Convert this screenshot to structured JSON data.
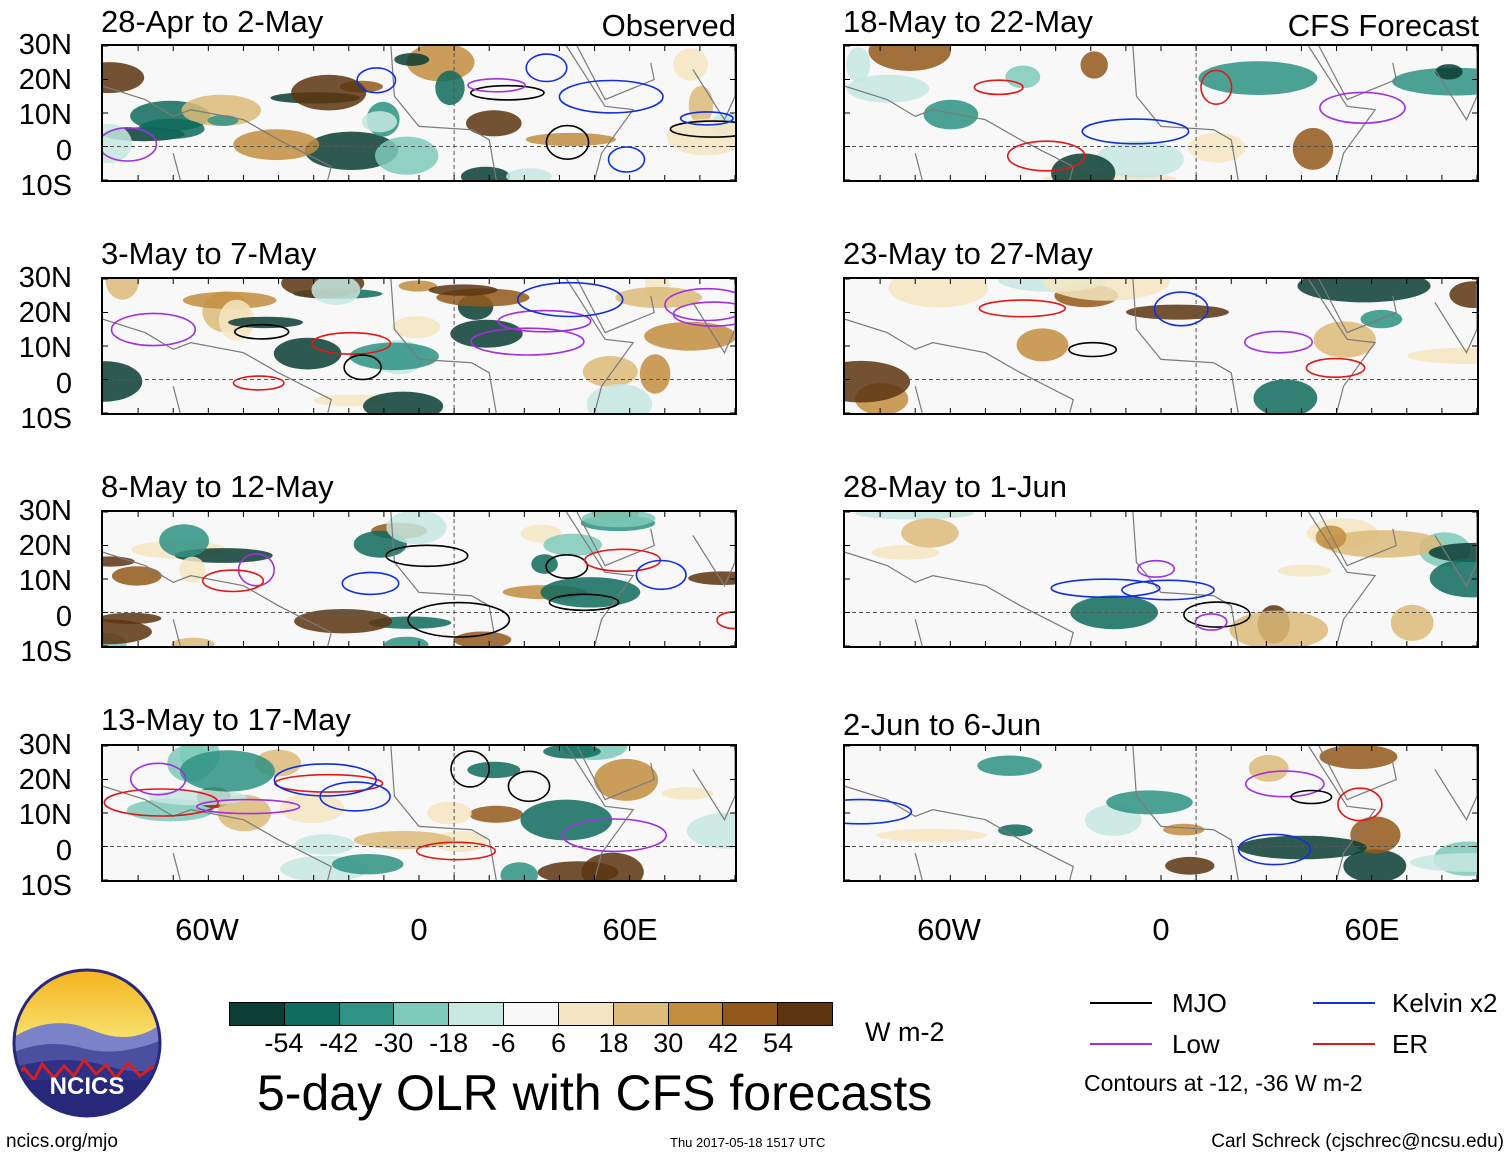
{
  "main_title": "5-day OLR with CFS forecasts",
  "panel_tags": {
    "observed": "Observed",
    "forecast": "CFS Forecast"
  },
  "lat_labels": [
    "30N",
    "20N",
    "10N",
    "0",
    "10S"
  ],
  "lon_labels": [
    "60W",
    "0",
    "60E"
  ],
  "colorbar": {
    "units": "W m-2",
    "ticks": [
      "-54",
      "-42",
      "-30",
      "-18",
      "-6",
      "6",
      "18",
      "30",
      "42",
      "54"
    ],
    "colors": [
      "#0a3d34",
      "#0f6b5d",
      "#2e9284",
      "#7fcabb",
      "#c6e8e0",
      "#f8f8f8",
      "#f4e6c2",
      "#ddbb79",
      "#c28d3e",
      "#93591a",
      "#5c3510"
    ]
  },
  "legend": {
    "mjo": "MJO",
    "kelvin": "Kelvin x2",
    "low": "Low",
    "er": "ER",
    "contour_note": "Contours at -12, -36 W m-2",
    "colors": {
      "mjo": "#000000",
      "kelvin": "#1030e0",
      "low": "#a030e0",
      "er": "#e01818"
    }
  },
  "footer": {
    "site": "ncics.org/mjo",
    "timestamp": "Thu 2017-05-18 1517 UTC",
    "author": "Carl Schreck (cjschrec@ncsu.edu)"
  },
  "logo_text": "NCICS",
  "chart_data": {
    "type": "heatmap",
    "title": "5-day OLR with CFS forecasts",
    "variable": "OLR anomaly",
    "units": "W m-2",
    "lat_range": [
      -10,
      30
    ],
    "lon_range": [
      -100,
      80
    ],
    "contour_levels": [
      -12,
      -36
    ],
    "panels": [
      {
        "period": "28-Apr to 2-May",
        "source": "Observed",
        "tag": "Observed"
      },
      {
        "period": "3-May to 7-May",
        "source": "Observed"
      },
      {
        "period": "8-May to 12-May",
        "source": "Observed"
      },
      {
        "period": "13-May to 17-May",
        "source": "Observed"
      },
      {
        "period": "18-May to 22-May",
        "source": "CFS Forecast",
        "tag": "CFS Forecast"
      },
      {
        "period": "23-May to 27-May",
        "source": "CFS Forecast"
      },
      {
        "period": "28-May to 1-Jun",
        "source": "CFS Forecast"
      },
      {
        "period": "2-Jun to 6-Jun",
        "source": "CFS Forecast"
      }
    ]
  }
}
